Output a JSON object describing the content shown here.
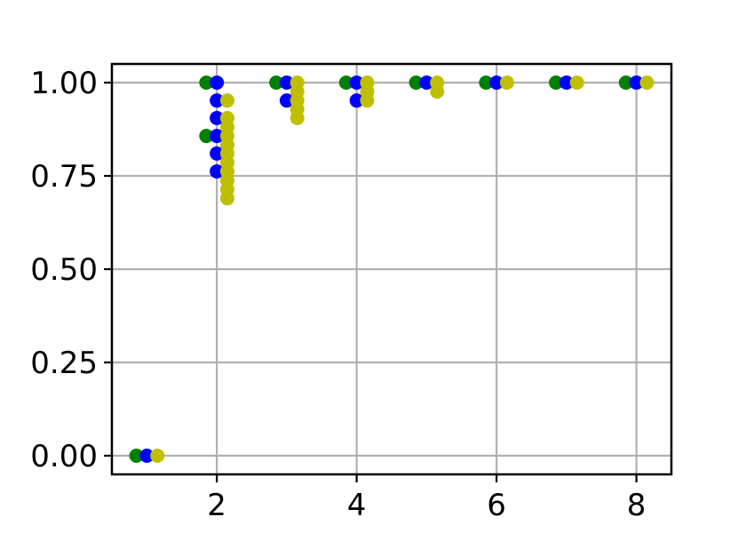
{
  "chart_data": {
    "type": "scatter",
    "title": "",
    "xlabel": "",
    "ylabel": "",
    "xlim": [
      0.5,
      8.5
    ],
    "ylim": [
      -0.05,
      1.05
    ],
    "grid": true,
    "x_ticks": [
      2,
      4,
      6,
      8
    ],
    "x_tick_labels": [
      "2",
      "4",
      "6",
      "8"
    ],
    "y_ticks": [
      0.0,
      0.25,
      0.5,
      0.75,
      1.0
    ],
    "y_tick_labels": [
      "0.00",
      "0.25",
      "0.50",
      "0.75",
      "1.00"
    ],
    "series": [
      {
        "color": "#008000",
        "points": [
          [
            0.85,
            0.0
          ],
          [
            1.85,
            1.0
          ],
          [
            1.85,
            0.857
          ],
          [
            2.85,
            1.0
          ],
          [
            3.85,
            1.0
          ],
          [
            4.85,
            1.0
          ],
          [
            5.85,
            1.0
          ],
          [
            6.85,
            1.0
          ],
          [
            7.85,
            1.0
          ]
        ]
      },
      {
        "color": "#0000ff",
        "points": [
          [
            1.0,
            0.0
          ],
          [
            2.0,
            1.0
          ],
          [
            2.0,
            0.952
          ],
          [
            2.0,
            0.905
          ],
          [
            2.0,
            0.857
          ],
          [
            2.0,
            0.81
          ],
          [
            2.0,
            0.762
          ],
          [
            3.0,
            1.0
          ],
          [
            3.0,
            0.952
          ],
          [
            4.0,
            1.0
          ],
          [
            4.0,
            0.952
          ],
          [
            5.0,
            1.0
          ],
          [
            6.0,
            1.0
          ],
          [
            7.0,
            1.0
          ],
          [
            8.0,
            1.0
          ]
        ]
      },
      {
        "color": "#bfbf00",
        "points": [
          [
            1.15,
            0.0
          ],
          [
            2.15,
            0.952
          ],
          [
            2.15,
            0.905
          ],
          [
            2.15,
            0.881
          ],
          [
            2.15,
            0.857
          ],
          [
            2.15,
            0.833
          ],
          [
            2.15,
            0.81
          ],
          [
            2.15,
            0.786
          ],
          [
            2.15,
            0.762
          ],
          [
            2.15,
            0.738
          ],
          [
            2.15,
            0.714
          ],
          [
            2.15,
            0.69
          ],
          [
            3.15,
            1.0
          ],
          [
            3.15,
            0.976
          ],
          [
            3.15,
            0.952
          ],
          [
            3.15,
            0.929
          ],
          [
            3.15,
            0.905
          ],
          [
            4.15,
            1.0
          ],
          [
            4.15,
            0.976
          ],
          [
            4.15,
            0.952
          ],
          [
            5.15,
            1.0
          ],
          [
            5.15,
            0.976
          ],
          [
            6.15,
            1.0
          ],
          [
            7.15,
            1.0
          ],
          [
            8.15,
            1.0
          ]
        ]
      }
    ]
  }
}
